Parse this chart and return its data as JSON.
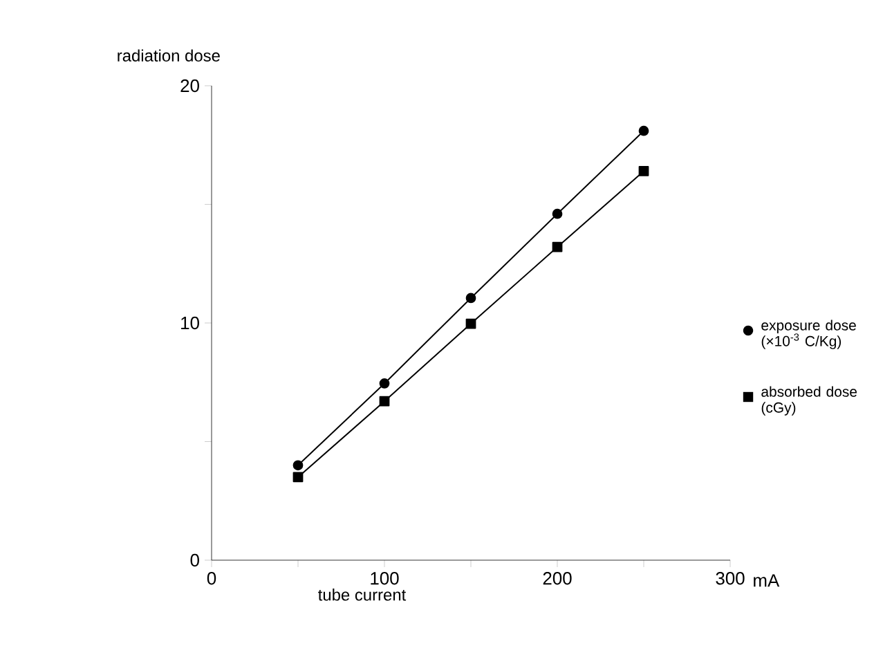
{
  "chart_data": {
    "type": "line",
    "xlabel": "tube current",
    "ylabel": "radiation dose",
    "annotations": [
      "mA"
    ],
    "x": [
      50,
      100,
      150,
      200,
      250
    ],
    "series": [
      {
        "name": "exposure dose (×10$^{-3}$ C/Kg)",
        "color": "#000000",
        "marker": "circle",
        "values": [
          4.0,
          7.45,
          11.05,
          14.6,
          18.1
        ]
      },
      {
        "name": "absorbed dose (cGy)",
        "color": "#000000",
        "marker": "square",
        "values": [
          3.5,
          6.7,
          9.97,
          13.2,
          16.4
        ]
      }
    ],
    "xlim": [
      0,
      300
    ],
    "ylim": [
      0,
      20
    ],
    "xticks": [
      0,
      {
        "value": 50,
        "label": null
      },
      100,
      {
        "value": 150,
        "label": null
      },
      200,
      {
        "value": 250,
        "label": null
      },
      300
    ],
    "yticks": [
      0,
      {
        "value": 5,
        "label": null
      },
      10,
      {
        "value": 15,
        "label": null
      },
      20
    ],
    "grid": false,
    "legend": "right",
    "line_style": "solid"
  }
}
